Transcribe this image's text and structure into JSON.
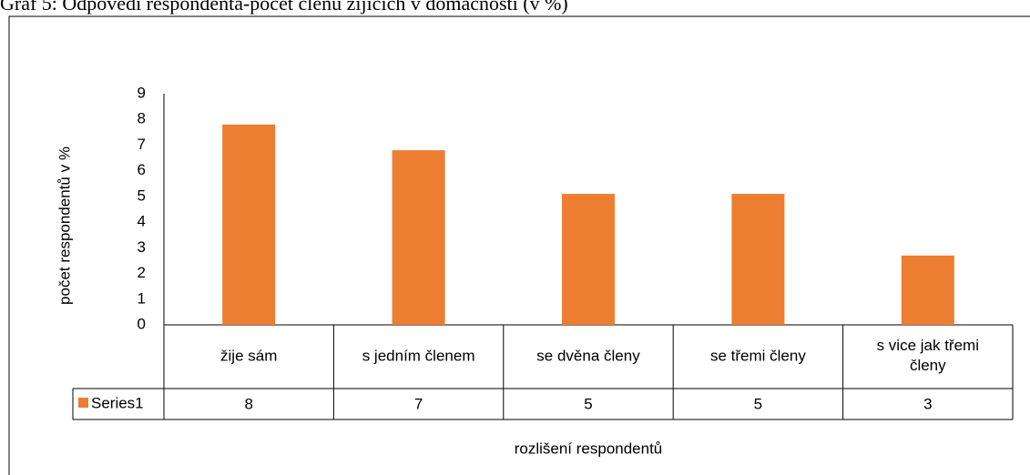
{
  "chart_data": {
    "type": "bar",
    "title": "Graf 5: Odpovědi respondenta-počet členů žijících v domácnosti (v %)",
    "y_label": "počet respondentů v %",
    "x_label": "rozlišení respondentů",
    "categories": [
      "žije sám",
      "s jedním členem",
      "se dvěna členy",
      "se třemi členy",
      "s vice jak třemi členy"
    ],
    "series": [
      {
        "name": "Series1",
        "color": "#ed7d31",
        "values": [
          7.8,
          6.8,
          5.1,
          5.1,
          2.7
        ],
        "value_labels": [
          "8",
          "7",
          "5",
          "5",
          "3"
        ]
      }
    ],
    "ylim": [
      0,
      9
    ],
    "yticks": [
      0,
      1,
      2,
      3,
      4,
      5,
      6,
      7,
      8,
      9
    ],
    "grid": false
  }
}
